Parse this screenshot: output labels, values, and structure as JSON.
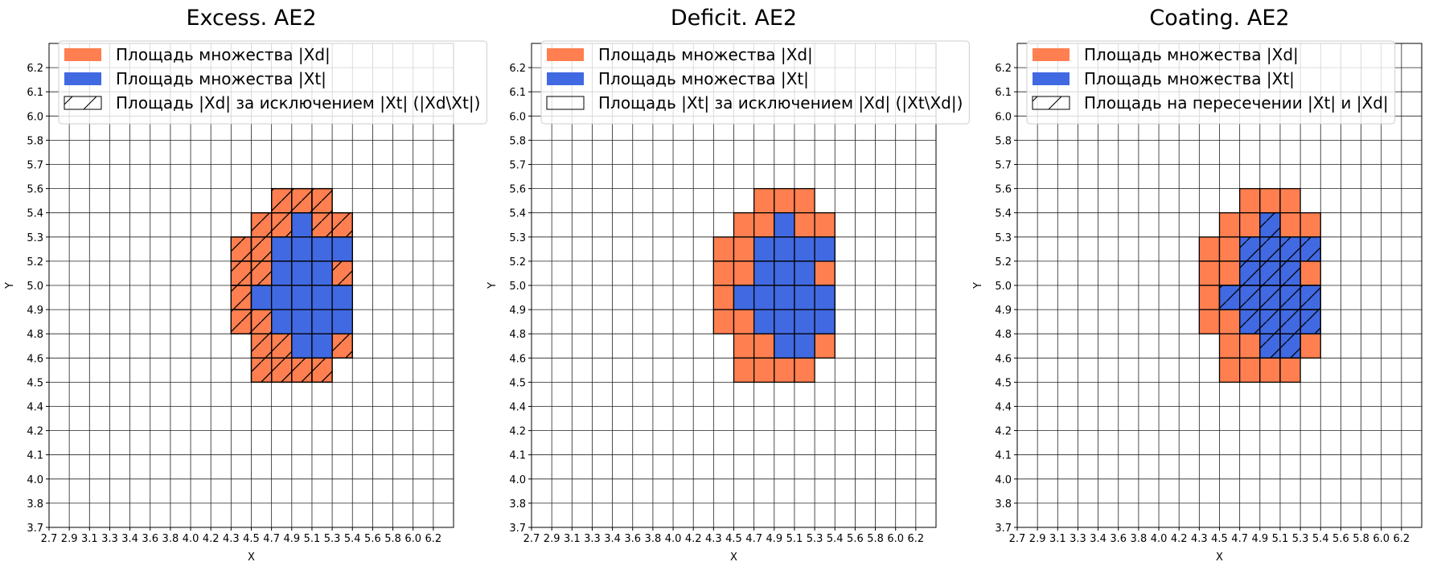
{
  "chart_data": [
    {
      "type": "heatmap",
      "title": "Excess. AE2",
      "xlabel": "X",
      "ylabel": "Y",
      "hatch_on": "Xd_minus_Xt",
      "legend": [
        {
          "label": "Площадь множества |Xd|",
          "color": "#ff7f50",
          "kind": "fill"
        },
        {
          "label": "Площадь множества  |Xt|",
          "color": "#4169e1",
          "kind": "fill"
        },
        {
          "label": "Площадь |Xd| за исключением |Xt| (|Xd\\Xt|)",
          "color": "none",
          "kind": "hatch"
        }
      ]
    },
    {
      "type": "heatmap",
      "title": "Deficit. AE2",
      "xlabel": "X",
      "ylabel": "Y",
      "hatch_on": "Xt_minus_Xd",
      "legend": [
        {
          "label": "Площадь множества |Xd|",
          "color": "#ff7f50",
          "kind": "fill"
        },
        {
          "label": "Площадь множества  |Xt|",
          "color": "#4169e1",
          "kind": "fill"
        },
        {
          "label": "Площадь |Xt| за исключением |Xd| (|Xt\\Xd|)",
          "color": "none",
          "kind": "empty"
        }
      ]
    },
    {
      "type": "heatmap",
      "title": "Coating. AE2",
      "xlabel": "X",
      "ylabel": "Y",
      "hatch_on": "Xt_and_Xd",
      "legend": [
        {
          "label": "Площадь множества |Xd|",
          "color": "#ff7f50",
          "kind": "fill"
        },
        {
          "label": "Площадь множества  |Xt|",
          "color": "#4169e1",
          "kind": "fill"
        },
        {
          "label": "Площадь на пересечении |Xt| и |Xd|",
          "color": "none",
          "kind": "hatch"
        }
      ]
    }
  ],
  "axes": {
    "x_ticks": [
      "2.7",
      "2.9",
      "3.1",
      "3.3",
      "3.4",
      "3.6",
      "3.8",
      "4.0",
      "4.2",
      "4.3",
      "4.5",
      "4.7",
      "4.9",
      "5.1",
      "5.3",
      "5.4",
      "5.6",
      "5.8",
      "6.0",
      "6.2"
    ],
    "y_ticks": [
      "3.7",
      "3.8",
      "4.0",
      "4.1",
      "4.2",
      "4.4",
      "4.5",
      "4.6",
      "4.8",
      "4.9",
      "5.0",
      "5.2",
      "5.3",
      "5.4",
      "5.6",
      "5.7",
      "5.8",
      "6.0",
      "6.1",
      "6.2"
    ],
    "grid": true
  },
  "sets": {
    "Xd": [
      [
        "4.7",
        "5.4"
      ],
      [
        "4.9",
        "5.4"
      ],
      [
        "5.1",
        "5.4"
      ],
      [
        "4.5",
        "5.3"
      ],
      [
        "4.7",
        "5.3"
      ],
      [
        "4.9",
        "5.3"
      ],
      [
        "5.1",
        "5.3"
      ],
      [
        "5.3",
        "5.3"
      ],
      [
        "4.3",
        "5.2"
      ],
      [
        "4.5",
        "5.2"
      ],
      [
        "4.7",
        "5.2"
      ],
      [
        "4.9",
        "5.2"
      ],
      [
        "5.1",
        "5.2"
      ],
      [
        "5.3",
        "5.2"
      ],
      [
        "4.3",
        "5.0"
      ],
      [
        "4.5",
        "5.0"
      ],
      [
        "4.7",
        "5.0"
      ],
      [
        "4.9",
        "5.0"
      ],
      [
        "5.1",
        "5.0"
      ],
      [
        "5.3",
        "5.0"
      ],
      [
        "4.3",
        "4.9"
      ],
      [
        "4.5",
        "4.9"
      ],
      [
        "4.7",
        "4.9"
      ],
      [
        "4.9",
        "4.9"
      ],
      [
        "5.1",
        "4.9"
      ],
      [
        "5.3",
        "4.9"
      ],
      [
        "4.3",
        "4.8"
      ],
      [
        "4.5",
        "4.8"
      ],
      [
        "4.7",
        "4.8"
      ],
      [
        "4.9",
        "4.8"
      ],
      [
        "5.1",
        "4.8"
      ],
      [
        "5.3",
        "4.8"
      ],
      [
        "4.5",
        "4.6"
      ],
      [
        "4.7",
        "4.6"
      ],
      [
        "4.9",
        "4.6"
      ],
      [
        "5.1",
        "4.6"
      ],
      [
        "5.3",
        "4.6"
      ],
      [
        "4.5",
        "4.5"
      ],
      [
        "4.7",
        "4.5"
      ],
      [
        "4.9",
        "4.5"
      ],
      [
        "5.1",
        "4.5"
      ]
    ],
    "Xt": [
      [
        "4.9",
        "5.3"
      ],
      [
        "4.7",
        "5.2"
      ],
      [
        "4.9",
        "5.2"
      ],
      [
        "5.1",
        "5.2"
      ],
      [
        "5.3",
        "5.2"
      ],
      [
        "4.7",
        "5.0"
      ],
      [
        "4.9",
        "5.0"
      ],
      [
        "5.1",
        "5.0"
      ],
      [
        "4.5",
        "4.9"
      ],
      [
        "4.7",
        "4.9"
      ],
      [
        "4.9",
        "4.9"
      ],
      [
        "5.1",
        "4.9"
      ],
      [
        "5.3",
        "4.9"
      ],
      [
        "4.7",
        "4.8"
      ],
      [
        "4.9",
        "4.8"
      ],
      [
        "5.1",
        "4.8"
      ],
      [
        "5.3",
        "4.8"
      ],
      [
        "4.9",
        "4.6"
      ],
      [
        "5.1",
        "4.6"
      ]
    ]
  }
}
